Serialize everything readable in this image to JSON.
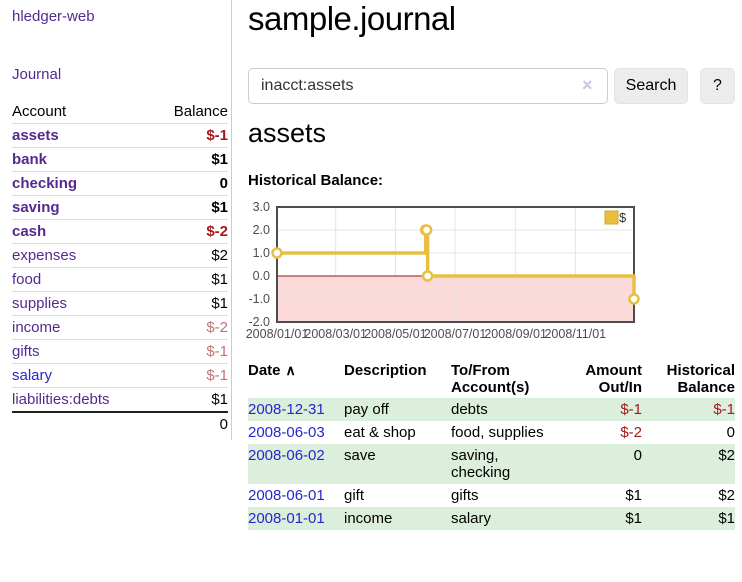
{
  "colors": {
    "purple_link": "#552a90",
    "blue_link": "#2428cc",
    "negative": "#a31a1a",
    "negative_soft": "#c17474",
    "row_green": "#dceedc",
    "divider": "#cccccc"
  },
  "icons": {
    "sort_asc": "∧",
    "clear": "×"
  },
  "sidebar": {
    "brand": "hledger-web",
    "journal_link": "Journal",
    "accounts": {
      "headers": {
        "account": "Account",
        "balance": "Balance"
      },
      "rows": [
        {
          "name": "assets",
          "balance": "$-1",
          "indent": 1,
          "bold": true,
          "link_color": "purple",
          "balance_class": "neg"
        },
        {
          "name": "bank",
          "balance": "$1",
          "indent": 2,
          "bold": true,
          "link_color": "purple",
          "balance_class": ""
        },
        {
          "name": "checking",
          "balance": "0",
          "indent": 3,
          "bold": true,
          "link_color": "purple",
          "balance_class": ""
        },
        {
          "name": "saving",
          "balance": "$1",
          "indent": 3,
          "bold": true,
          "link_color": "purple",
          "balance_class": ""
        },
        {
          "name": "cash",
          "balance": "$-2",
          "indent": 2,
          "bold": true,
          "link_color": "purple",
          "balance_class": "neg"
        },
        {
          "name": "expenses",
          "balance": "$2",
          "indent": 1,
          "bold": false,
          "link_color": "purple",
          "balance_class": ""
        },
        {
          "name": "food",
          "balance": "$1",
          "indent": 2,
          "bold": false,
          "link_color": "purple",
          "balance_class": ""
        },
        {
          "name": "supplies",
          "balance": "$1",
          "indent": 2,
          "bold": false,
          "link_color": "purple",
          "balance_class": ""
        },
        {
          "name": "income",
          "balance": "$-2",
          "indent": 1,
          "bold": false,
          "link_color": "purple",
          "balance_class": "rose"
        },
        {
          "name": "gifts",
          "balance": "$-1",
          "indent": 2,
          "bold": false,
          "link_color": "purple",
          "balance_class": "rose"
        },
        {
          "name": "salary",
          "balance": "$-1",
          "indent": 2,
          "bold": false,
          "link_color": "blue",
          "balance_class": "rose"
        },
        {
          "name": "liabilities:debts",
          "balance": "$1",
          "indent": 1,
          "bold": false,
          "link_color": "purple",
          "balance_class": ""
        }
      ],
      "total": "0"
    }
  },
  "main": {
    "title": "sample.journal",
    "search": {
      "value": "inacct:assets",
      "button": "Search",
      "help_button": "?"
    },
    "account_heading": "assets",
    "chart_label": "Historical Balance:"
  },
  "chart_data": {
    "type": "line",
    "step": true,
    "title": "Historical Balance",
    "series": [
      {
        "name": "$",
        "points": [
          [
            "2008-01-01",
            1
          ],
          [
            "2008-06-01",
            2
          ],
          [
            "2008-06-02",
            2
          ],
          [
            "2008-06-03",
            0
          ],
          [
            "2008-12-31",
            -1
          ]
        ]
      }
    ],
    "x_range": [
      "2008-01-01",
      "2008-12-31"
    ],
    "ylim": [
      -2,
      3
    ],
    "yticks": [
      3,
      2,
      1,
      0,
      -1,
      -2
    ],
    "xtick_labels": [
      "2008/01/01",
      "2008/03/01",
      "2008/05/01",
      "2008/07/01",
      "2008/09/01",
      "2008/11/01"
    ],
    "legend": {
      "label": "$",
      "position": "top-right"
    },
    "grid": true,
    "colors": {
      "line": "#e7c041",
      "marker_fill": "#ffffff",
      "negative_region": "#fcdada",
      "zero_line": "#8b1a1a",
      "grid": "#e4e4e4",
      "border": "#4d4d4d",
      "tick_text": "#4d4d4d"
    }
  },
  "register": {
    "headers": [
      "Date",
      "Description",
      "To/From Account(s)",
      "Amount Out/In",
      "Historical Balance"
    ],
    "rows": [
      {
        "date": "2008-12-31",
        "description": "pay off",
        "accounts": "debts",
        "amount": "$-1",
        "amount_neg": true,
        "balance": "$-1",
        "balance_neg": true
      },
      {
        "date": "2008-06-03",
        "description": "eat & shop",
        "accounts": "food, supplies",
        "amount": "$-2",
        "amount_neg": true,
        "balance": "0",
        "balance_neg": false
      },
      {
        "date": "2008-06-02",
        "description": "save",
        "accounts": "saving, checking",
        "amount": "0",
        "amount_neg": false,
        "balance": "$2",
        "balance_neg": false
      },
      {
        "date": "2008-06-01",
        "description": "gift",
        "accounts": "gifts",
        "amount": "$1",
        "amount_neg": false,
        "balance": "$2",
        "balance_neg": false
      },
      {
        "date": "2008-01-01",
        "description": "income",
        "accounts": "salary",
        "amount": "$1",
        "amount_neg": false,
        "balance": "$1",
        "balance_neg": false
      }
    ]
  }
}
